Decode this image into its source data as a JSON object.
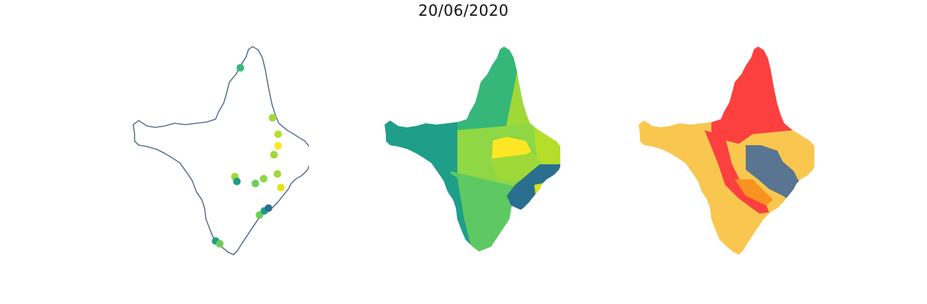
{
  "title": "20/06/2020",
  "colors": {
    "outline": "#566f8a",
    "point_palette": [
      "#2b6f8e",
      "#1f9e89",
      "#35b779",
      "#6ccd5a",
      "#b5de2b",
      "#fde725"
    ],
    "risk_red": "#fc4040",
    "risk_yellow": "#f9c74f",
    "risk_orange": "#f7931e",
    "risk_slate": "#5a7591"
  },
  "panels": [
    {
      "name": "stations-point-map",
      "type": "points"
    },
    {
      "name": "interpolated-choropleth-map",
      "type": "choropleth"
    },
    {
      "name": "risk-category-map",
      "type": "categorical"
    }
  ]
}
